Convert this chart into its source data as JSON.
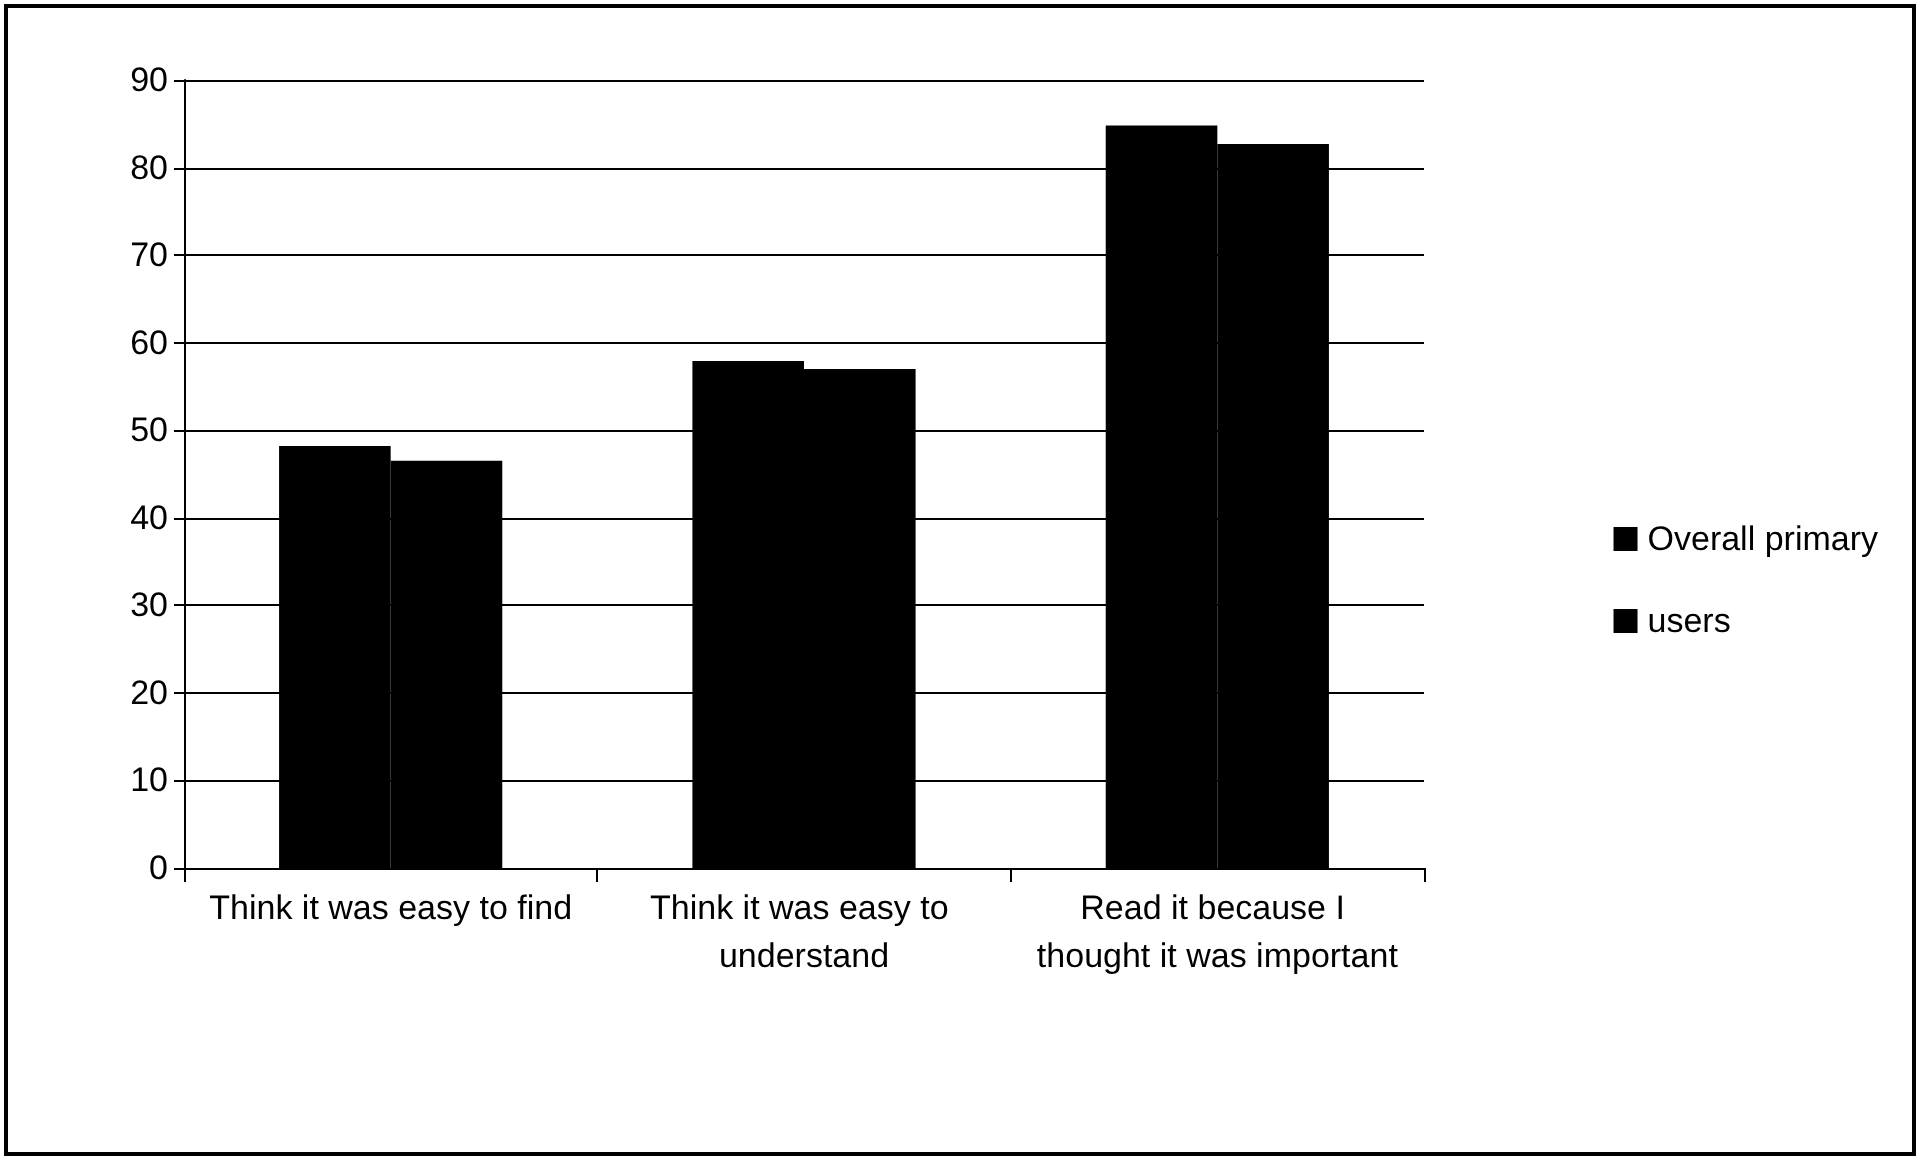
{
  "chart_data": {
    "type": "bar",
    "categories": [
      "Think it was easy to find",
      "Think it was easy to understand",
      "Read it because I thought it was important"
    ],
    "series": [
      {
        "name": "Overall primary",
        "color": "#000000",
        "values": [
          48.2,
          57.9,
          84.8
        ]
      },
      {
        "name": "users",
        "color": "#000000",
        "values": [
          46.5,
          57.0,
          82.7
        ]
      }
    ],
    "ylim": [
      0,
      90
    ],
    "yticks": [
      0,
      10,
      20,
      30,
      40,
      50,
      60,
      70,
      80,
      90
    ],
    "grid": "y",
    "legend": "right"
  }
}
